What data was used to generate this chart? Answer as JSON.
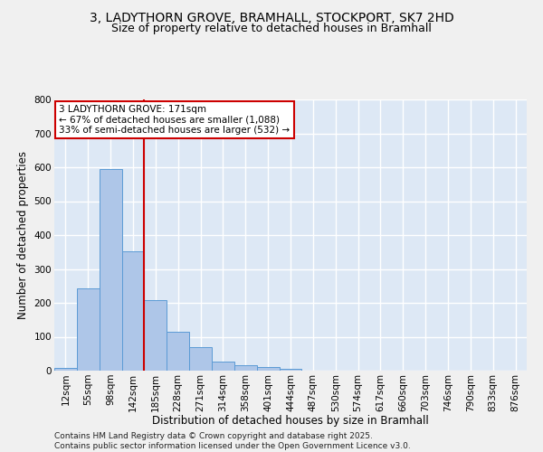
{
  "title": "3, LADYTHORN GROVE, BRAMHALL, STOCKPORT, SK7 2HD",
  "subtitle": "Size of property relative to detached houses in Bramhall",
  "xlabel": "Distribution of detached houses by size in Bramhall",
  "ylabel": "Number of detached properties",
  "bin_labels": [
    "12sqm",
    "55sqm",
    "98sqm",
    "142sqm",
    "185sqm",
    "228sqm",
    "271sqm",
    "314sqm",
    "358sqm",
    "401sqm",
    "444sqm",
    "487sqm",
    "530sqm",
    "574sqm",
    "617sqm",
    "660sqm",
    "703sqm",
    "746sqm",
    "790sqm",
    "833sqm",
    "876sqm"
  ],
  "bar_values": [
    8,
    243,
    595,
    352,
    207,
    116,
    70,
    27,
    17,
    10,
    5,
    1,
    0,
    0,
    0,
    0,
    0,
    0,
    0,
    0,
    0
  ],
  "bar_color": "#aec6e8",
  "bar_edge_color": "#5b9bd5",
  "vline_index": 3.5,
  "vline_color": "#cc0000",
  "annotation_text": "3 LADYTHORN GROVE: 171sqm\n← 67% of detached houses are smaller (1,088)\n33% of semi-detached houses are larger (532) →",
  "annotation_box_color": "#ffffff",
  "annotation_box_edge": "#cc0000",
  "ylim": [
    0,
    800
  ],
  "yticks": [
    0,
    100,
    200,
    300,
    400,
    500,
    600,
    700,
    800
  ],
  "footer_line1": "Contains HM Land Registry data © Crown copyright and database right 2025.",
  "footer_line2": "Contains public sector information licensed under the Open Government Licence v3.0.",
  "bg_color": "#dde8f5",
  "grid_color": "#ffffff",
  "fig_bg_color": "#f0f0f0",
  "title_fontsize": 10,
  "subtitle_fontsize": 9,
  "axis_label_fontsize": 8.5,
  "tick_fontsize": 7.5,
  "annotation_fontsize": 7.5,
  "footer_fontsize": 6.5
}
